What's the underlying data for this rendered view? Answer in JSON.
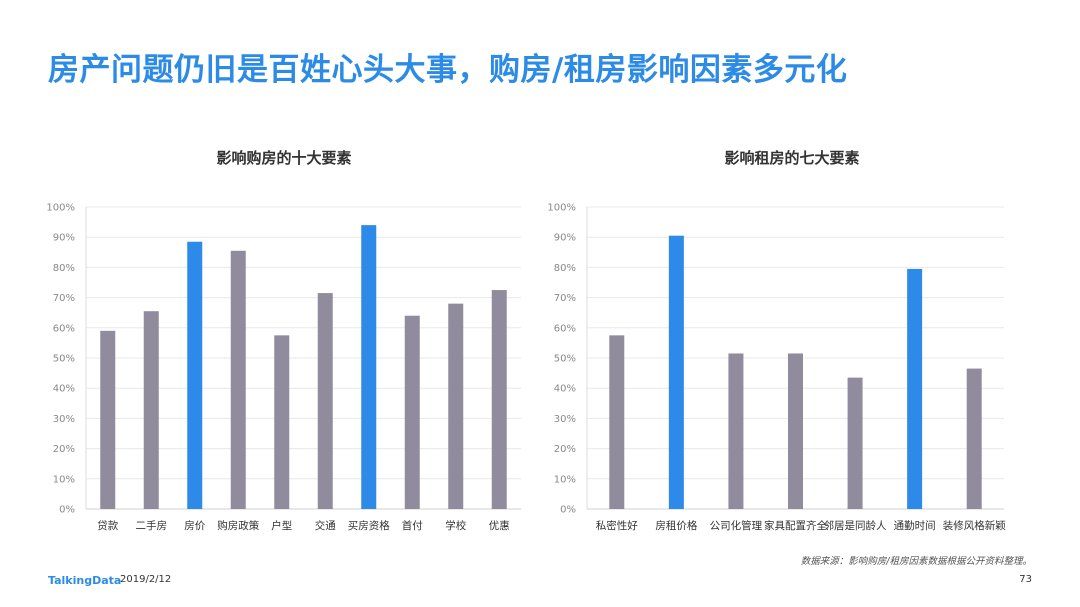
{
  "page": {
    "title": "房产问题仍旧是百姓心头大事，购房/租房影响因素多元化",
    "source": "数据来源：影响购房/租房因素数据根据公开资料整理。",
    "brand": "TalkingData",
    "date": "2019/2/12",
    "page_number": "73"
  },
  "colors": {
    "highlight": "#2e8ae8",
    "normal": "#918c9d",
    "grid": "#e8e8e8",
    "title": "#2b8be6"
  },
  "chart_data": [
    {
      "type": "bar",
      "title": "影响购房的十大要素",
      "categories": [
        "贷款",
        "二手房",
        "房价",
        "购房政策",
        "户型",
        "交通",
        "买房资格",
        "首付",
        "学校",
        "优惠"
      ],
      "values": [
        59,
        65.5,
        88.5,
        85.5,
        57.5,
        71.5,
        94,
        64,
        68,
        72.5
      ],
      "highlight": [
        false,
        false,
        true,
        false,
        false,
        false,
        true,
        false,
        false,
        false
      ],
      "ylim": [
        0,
        100
      ],
      "yticks": [
        "0%",
        "10%",
        "20%",
        "30%",
        "40%",
        "50%",
        "60%",
        "70%",
        "80%",
        "90%",
        "100%"
      ],
      "xlabel": "",
      "ylabel": "",
      "grid": true
    },
    {
      "type": "bar",
      "title": "影响租房的七大要素",
      "categories": [
        "私密性好",
        "房租价格",
        "公司化管理",
        "家具配置齐全",
        "邻居是同龄人",
        "通勤时间",
        "装修风格新颖"
      ],
      "values": [
        57.5,
        90.5,
        51.5,
        51.5,
        43.5,
        79.5,
        46.5
      ],
      "highlight": [
        false,
        true,
        false,
        false,
        false,
        true,
        false
      ],
      "ylim": [
        0,
        100
      ],
      "yticks": [
        "0%",
        "10%",
        "20%",
        "30%",
        "40%",
        "50%",
        "60%",
        "70%",
        "80%",
        "90%",
        "100%"
      ],
      "xlabel": "",
      "ylabel": "",
      "grid": true
    }
  ]
}
